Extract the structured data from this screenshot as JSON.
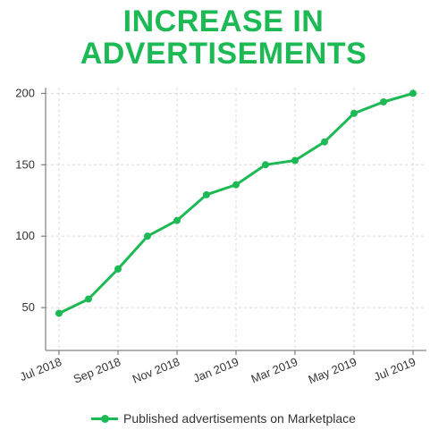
{
  "chart_data": {
    "type": "line",
    "title": "INCREASE IN ADVERTISEMENTS",
    "title_lines": [
      "INCREASE IN",
      "ADVERTISEMENTS"
    ],
    "xlabel": "",
    "ylabel": "",
    "x": [
      "Jul 2018",
      "Aug 2018",
      "Sep 2018",
      "Oct 2018",
      "Nov 2018",
      "Dec 2018",
      "Jan 2019",
      "Feb 2019",
      "Mar 2019",
      "Apr 2019",
      "May 2019",
      "Jun 2019",
      "Jul 2019"
    ],
    "x_tick_labels": [
      "Jul 2018",
      "Sep 2018",
      "Nov 2018",
      "Jan 2019",
      "Mar 2019",
      "May 2019",
      "Jul 2019"
    ],
    "y_ticks": [
      50,
      100,
      150,
      200
    ],
    "ylim": [
      20,
      204
    ],
    "grid": true,
    "legend_position": "bottom-center",
    "series": [
      {
        "name": "Published advertisements on Marketplace",
        "color": "#1db954",
        "values": [
          46,
          56,
          77,
          100,
          111,
          129,
          136,
          150,
          153,
          166,
          186,
          194,
          200
        ]
      }
    ]
  }
}
